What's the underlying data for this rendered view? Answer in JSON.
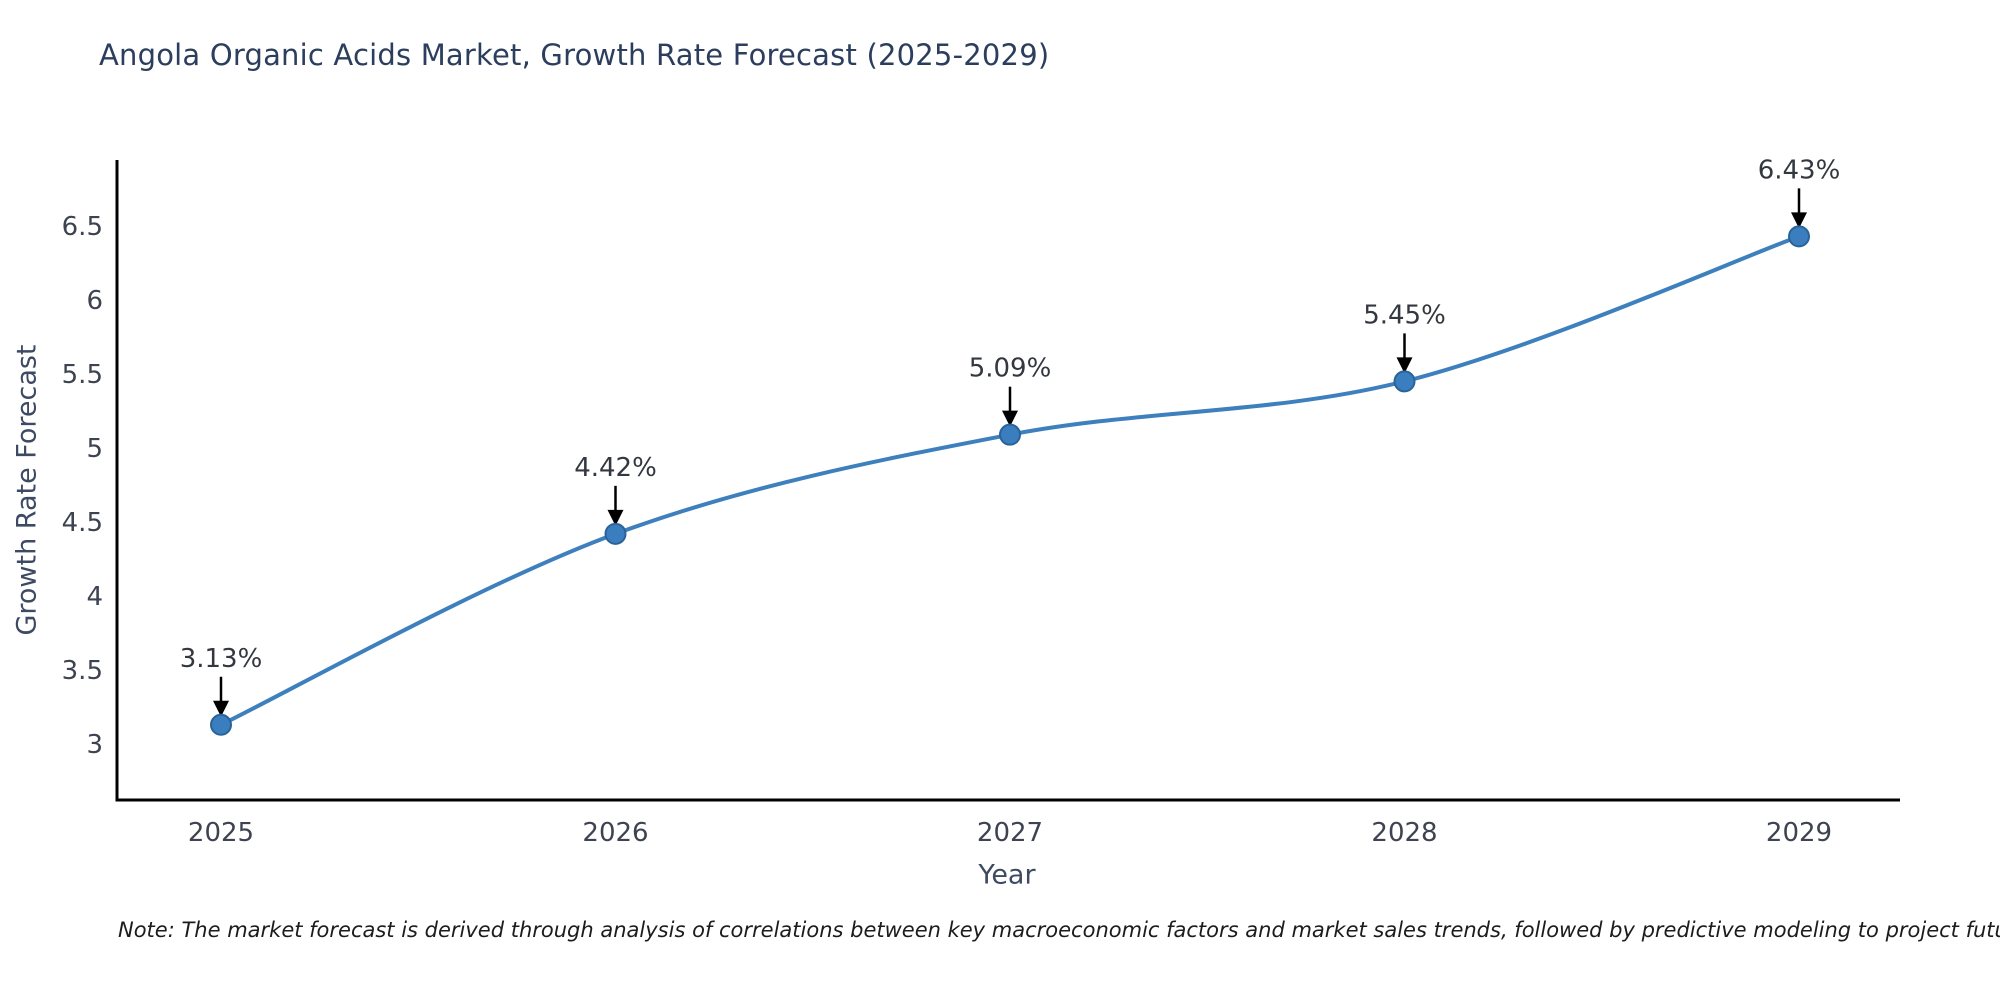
{
  "title": {
    "text": "Angola Organic Acids Market, Growth Rate Forecast (2025-2029)",
    "color": "#2c3e5d"
  },
  "note": {
    "text": "Note: The market forecast is derived through analysis of correlations between key macroeconomic factors and market sales trends, followed by predictive modeling to project future sales"
  },
  "chart_data": {
    "type": "line",
    "title": "Angola Organic Acids Market, Growth Rate Forecast (2025-2029)",
    "x": [
      2025,
      2026,
      2027,
      2028,
      2029
    ],
    "series": [
      {
        "name": "Growth Rate Forecast",
        "values": [
          3.13,
          4.42,
          5.09,
          5.45,
          6.43
        ]
      }
    ],
    "point_labels": [
      "3.13%",
      "4.42%",
      "5.09%",
      "5.45%",
      "6.43%"
    ],
    "xlabel": "Year",
    "ylabel": "Growth Rate Forecast",
    "xticks": [
      "2025",
      "2026",
      "2027",
      "2028",
      "2029"
    ],
    "yticks": [
      3,
      3.5,
      4,
      4.5,
      5,
      5.5,
      6,
      6.5
    ],
    "xlim": [
      2024.74,
      2029.26
    ],
    "ylim": [
      2.62,
      6.95
    ],
    "line_shape": "spline",
    "grid": false,
    "legend": "none",
    "colors": {
      "line": "#3d80bd",
      "marker_fill": "#3a7ebf",
      "marker_edge": "#2a6398",
      "annotation_arrow": "#000000",
      "annotation_text": "#33373f",
      "tick_label": "#3d4350",
      "axis_title": "#3e4a63",
      "axis_line": "#000000"
    }
  }
}
